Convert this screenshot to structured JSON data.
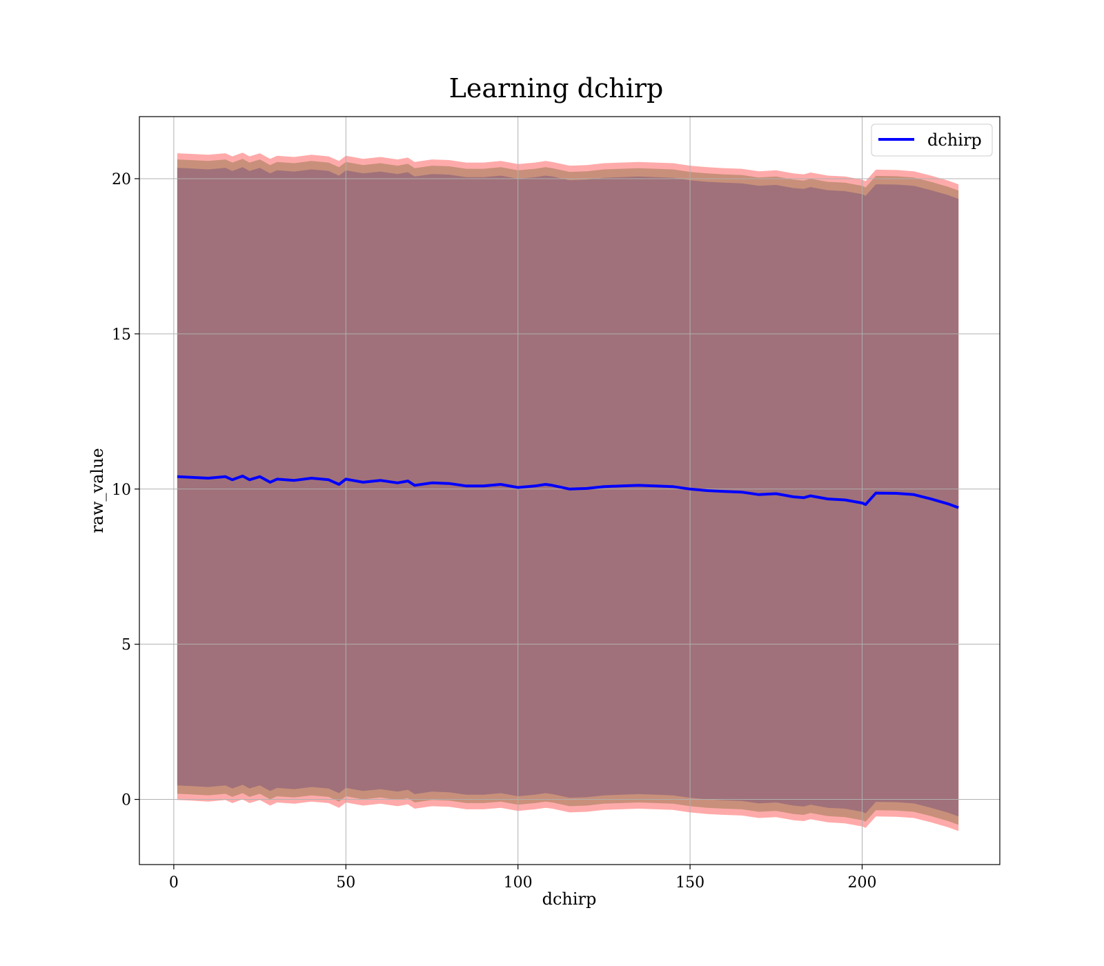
{
  "chart_data": {
    "type": "line",
    "title": "Learning dchirp",
    "xlabel": "dchirp",
    "ylabel": "raw_value",
    "xlim": [
      -10,
      240
    ],
    "ylim": [
      -2.1,
      22
    ],
    "xticks": [
      0,
      50,
      100,
      150,
      200
    ],
    "yticks": [
      0,
      5,
      10,
      15,
      20
    ],
    "grid": true,
    "legend": {
      "position": "top-right",
      "entries": [
        "dchirp"
      ]
    },
    "colors": {
      "line": "#0000ff",
      "inner_band": "#a0717a",
      "middle_band": "#c8907a",
      "outer_band": "#ffaaaa",
      "grid": "#b0b0b0"
    },
    "series": [
      {
        "name": "dchirp",
        "x": [
          1,
          5,
          10,
          15,
          17,
          20,
          22,
          25,
          28,
          30,
          35,
          40,
          45,
          48,
          50,
          55,
          60,
          65,
          68,
          70,
          75,
          80,
          85,
          90,
          95,
          100,
          105,
          108,
          110,
          115,
          120,
          125,
          130,
          135,
          140,
          145,
          150,
          155,
          160,
          165,
          170,
          175,
          180,
          183,
          185,
          190,
          195,
          200,
          201,
          204,
          210,
          215,
          220,
          225,
          228
        ],
        "values": [
          10.4,
          10.38,
          10.35,
          10.4,
          10.3,
          10.42,
          10.3,
          10.4,
          10.22,
          10.32,
          10.28,
          10.35,
          10.3,
          10.15,
          10.32,
          10.22,
          10.28,
          10.2,
          10.26,
          10.12,
          10.2,
          10.18,
          10.1,
          10.1,
          10.15,
          10.05,
          10.1,
          10.15,
          10.12,
          10.0,
          10.02,
          10.08,
          10.1,
          10.12,
          10.1,
          10.08,
          10.0,
          9.95,
          9.92,
          9.9,
          9.82,
          9.85,
          9.75,
          9.72,
          9.78,
          9.68,
          9.65,
          9.55,
          9.5,
          9.87,
          9.86,
          9.82,
          9.68,
          9.52,
          9.4
        ]
      }
    ]
  }
}
